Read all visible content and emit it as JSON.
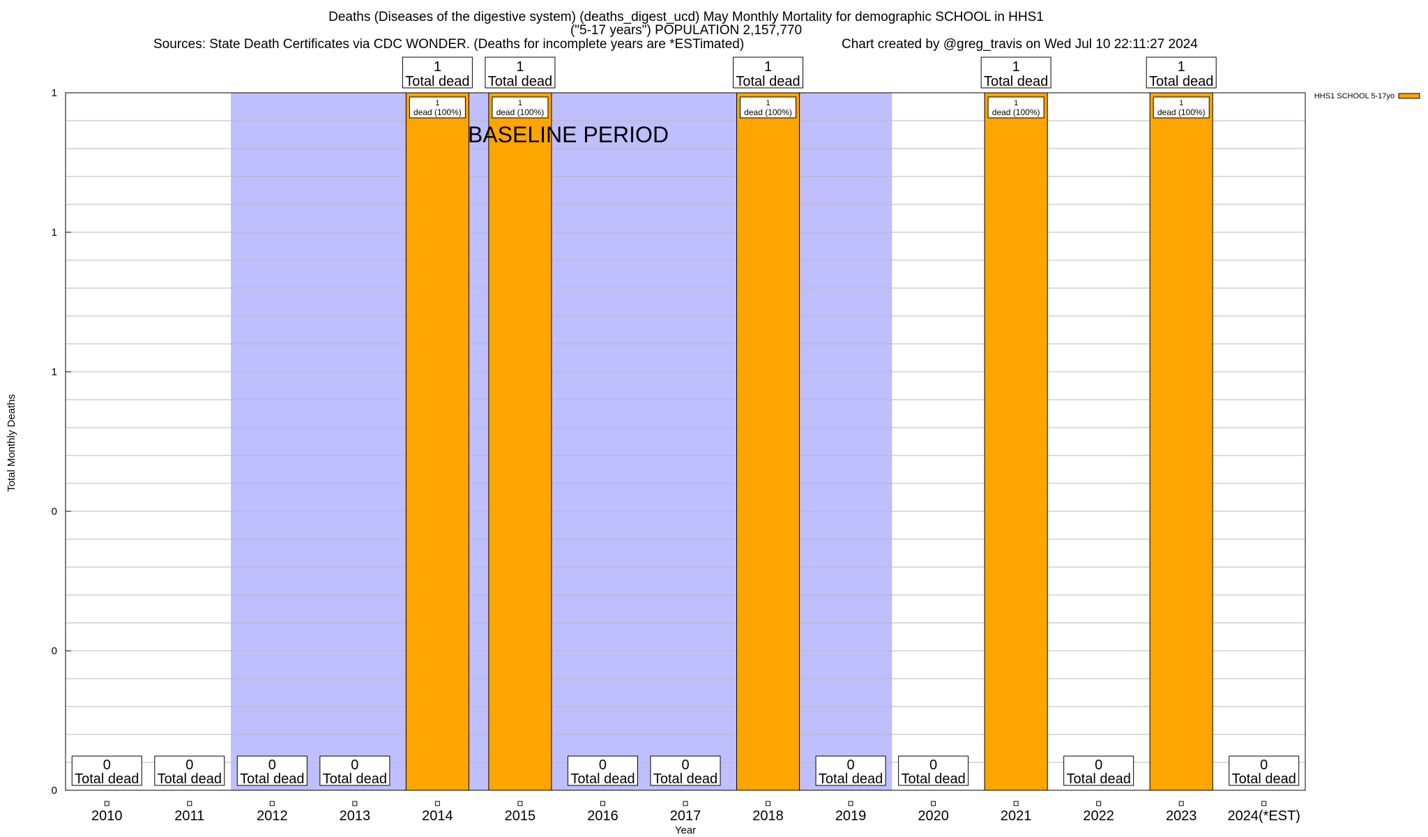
{
  "titles": {
    "line1": "Deaths (Diseases of the digestive system) (deaths_digest_ucd) May Monthly Mortality for demographic SCHOOL in HHS1",
    "line2": "(\"5-17 years\") POPULATION 2,157,770",
    "line3": "Sources: State Death Certificates via CDC WONDER. (Deaths for incomplete years are *ESTimated)",
    "credit": "Chart created by @greg_travis on Wed Jul 10 22:11:27 2024"
  },
  "chart_data": {
    "type": "bar",
    "xlabel": "Year",
    "ylabel": "Total Monthly Deaths",
    "ylim": [
      0,
      1
    ],
    "yticks": [
      {
        "v": 0,
        "label": "0"
      },
      {
        "v": 0.2,
        "label": "0"
      },
      {
        "v": 0.4,
        "label": "0"
      },
      {
        "v": 0.6,
        "label": "1"
      },
      {
        "v": 0.8,
        "label": "1"
      },
      {
        "v": 1.0,
        "label": "1"
      }
    ],
    "grid": true,
    "legend_position": "top-right",
    "baseline_label": "BASELINE PERIOD",
    "baseline_years": [
      "2012",
      "2019"
    ],
    "categories": [
      "2010",
      "2011",
      "2012",
      "2013",
      "2014",
      "2015",
      "2016",
      "2017",
      "2018",
      "2019",
      "2020",
      "2021",
      "2022",
      "2023",
      "2024(*EST)"
    ],
    "series": [
      {
        "name": "HHS1 SCHOOL 5-17yo",
        "color": "#ffa500",
        "values": [
          0,
          0,
          0,
          0,
          1,
          1,
          0,
          0,
          1,
          0,
          0,
          1,
          0,
          1,
          0
        ]
      }
    ],
    "total_label": "Total dead",
    "segment_label": "dead (100%)"
  },
  "colors": {
    "bar": "#ffa500",
    "baseline": "#bfbfff",
    "grid": "#b8b8b8"
  }
}
